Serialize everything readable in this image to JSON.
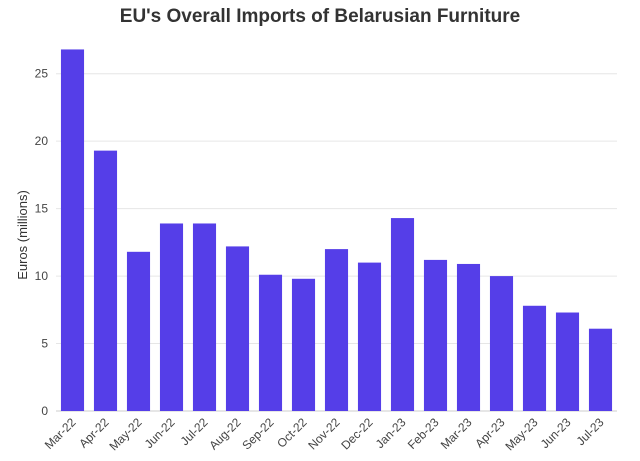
{
  "chart_data": {
    "type": "bar",
    "title": "EU's Overall Imports of Belarusian Furniture",
    "xlabel": "",
    "ylabel": "Euros (millions)",
    "categories": [
      "Mar-22",
      "Apr-22",
      "May-22",
      "Jun-22",
      "Jul-22",
      "Aug-22",
      "Sep-22",
      "Oct-22",
      "Nov-22",
      "Dec-22",
      "Jan-23",
      "Feb-23",
      "Mar-23",
      "Apr-23",
      "May-23",
      "Jun-23",
      "Jul-23"
    ],
    "values": [
      26.8,
      19.3,
      11.8,
      13.9,
      13.9,
      12.2,
      10.1,
      9.8,
      12.0,
      11.0,
      14.3,
      11.2,
      10.9,
      10.0,
      7.8,
      7.3,
      6.1
    ],
    "ylim": [
      0,
      27.5
    ],
    "yticks": [
      0,
      5,
      10,
      15,
      20,
      25
    ],
    "grid": true,
    "bar_color": "#553ee8"
  }
}
